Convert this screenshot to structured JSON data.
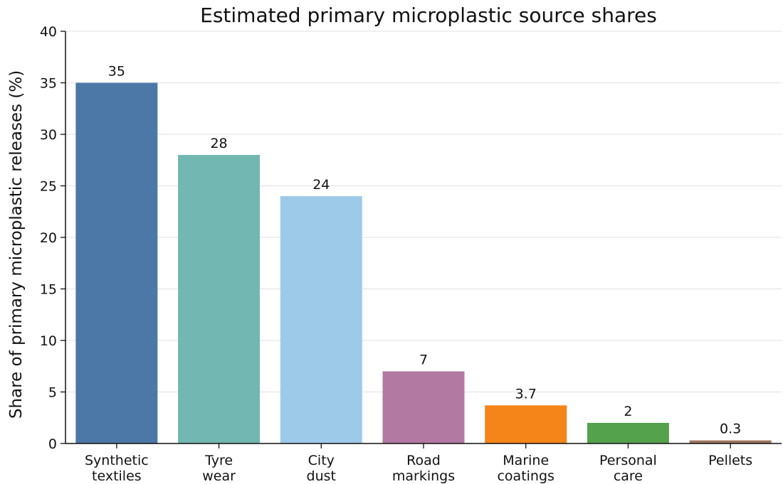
{
  "chart_data": {
    "type": "bar",
    "title": "Estimated primary microplastic source shares",
    "ylabel": "Share of primary microplastic releases (%)",
    "xlabel": "",
    "ylim": [
      0,
      40
    ],
    "yticks": [
      0,
      5,
      10,
      15,
      20,
      25,
      30,
      35,
      40
    ],
    "grid": "horizontal",
    "categories": [
      [
        "Synthetic",
        "textiles"
      ],
      [
        "Tyre",
        "wear"
      ],
      [
        "City",
        "dust"
      ],
      [
        "Road",
        "markings"
      ],
      [
        "Marine",
        "coatings"
      ],
      [
        "Personal",
        "care"
      ],
      [
        "Pellets"
      ]
    ],
    "values": [
      35,
      28,
      24,
      7,
      3.7,
      2,
      0.3
    ],
    "value_labels": [
      "35",
      "28",
      "24",
      "7",
      "3.7",
      "2",
      "0.3"
    ],
    "colors": [
      "#4c78a8",
      "#72b7b2",
      "#9ecae9",
      "#b279a2",
      "#f58518",
      "#54a24b",
      "#9d755d"
    ]
  }
}
